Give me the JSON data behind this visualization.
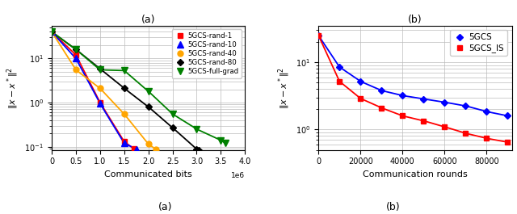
{
  "left": {
    "title": "(a)",
    "xlabel": "Communicated bits",
    "ylabel": "$\\|x - x^*\\|^2$",
    "xlim": [
      0,
      4000000.0
    ],
    "ylim": [
      0.085,
      55
    ],
    "xticks": [
      0,
      500000.0,
      1000000.0,
      1500000.0,
      2000000.0,
      2500000.0,
      3000000.0,
      3500000.0,
      4000000.0
    ],
    "series": [
      {
        "label": "5GCS-rand-1",
        "color": "red",
        "marker": "s",
        "x": [
          0,
          500000.0,
          1000000.0,
          1500000.0,
          1700000.0
        ],
        "y": [
          40,
          12,
          1.0,
          0.13,
          0.09
        ]
      },
      {
        "label": "5GCS-rand-10",
        "color": "blue",
        "marker": "^",
        "x": [
          0,
          500000.0,
          1000000.0,
          1500000.0,
          1750000.0
        ],
        "y": [
          40,
          10,
          0.95,
          0.12,
          0.088
        ]
      },
      {
        "label": "5GCS-rand-40",
        "color": "orange",
        "marker": "o",
        "x": [
          0,
          500000.0,
          1000000.0,
          1500000.0,
          2000000.0,
          2150000.0
        ],
        "y": [
          40,
          5.5,
          2.1,
          0.55,
          0.115,
          0.088
        ]
      },
      {
        "label": "5GCS-rand-80",
        "color": "black",
        "marker": "D",
        "x": [
          0,
          500000.0,
          1000000.0,
          1500000.0,
          2000000.0,
          2500000.0,
          3000000.0,
          3050000.0
        ],
        "y": [
          40,
          16,
          5.8,
          2.1,
          0.8,
          0.27,
          0.088,
          0.082
        ]
      },
      {
        "label": "5GCS-full-grad",
        "color": "green",
        "marker": "v",
        "x": [
          0,
          500000.0,
          1000000.0,
          1500000.0,
          2000000.0,
          2500000.0,
          3000000.0,
          3500000.0,
          3600000.0
        ],
        "y": [
          40,
          16,
          5.5,
          5.3,
          1.8,
          0.55,
          0.25,
          0.14,
          0.12
        ]
      }
    ]
  },
  "right": {
    "title": "(b)",
    "xlabel": "Communication rounds",
    "ylabel": "$\\|x - x^*\\|^2$",
    "xlim": [
      0,
      92000
    ],
    "ylim": [
      0.5,
      35
    ],
    "xticks": [
      0,
      20000,
      40000,
      60000,
      80000
    ],
    "series": [
      {
        "label": "5GCS",
        "color": "blue",
        "marker": "D",
        "x": [
          0,
          10000,
          20000,
          30000,
          40000,
          50000,
          60000,
          70000,
          80000,
          90000
        ],
        "y": [
          25,
          8.5,
          5.2,
          3.8,
          3.2,
          2.85,
          2.55,
          2.25,
          1.85,
          1.6
        ]
      },
      {
        "label": "5GCS_IS",
        "color": "red",
        "marker": "s",
        "x": [
          0,
          10000,
          20000,
          30000,
          40000,
          50000,
          60000,
          70000,
          80000,
          90000
        ],
        "y": [
          25,
          5.2,
          2.9,
          2.1,
          1.6,
          1.35,
          1.1,
          0.88,
          0.74,
          0.65
        ]
      }
    ]
  }
}
